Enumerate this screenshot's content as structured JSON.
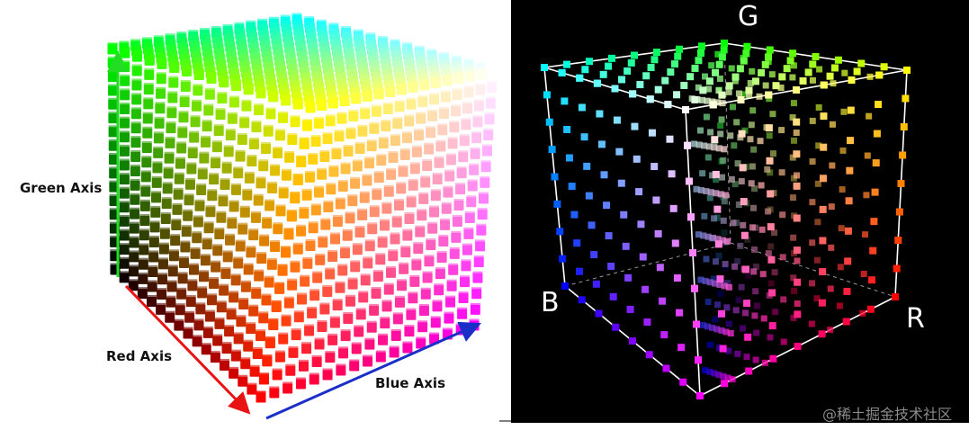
{
  "left": {
    "green_label": "Green Axis",
    "red_label": "Red Axis",
    "blue_label": "Blue Axis"
  },
  "right": {
    "g_label": "G",
    "b_label": "B",
    "r_label": "R"
  },
  "watermark": "@稀土掘金技术社区"
}
